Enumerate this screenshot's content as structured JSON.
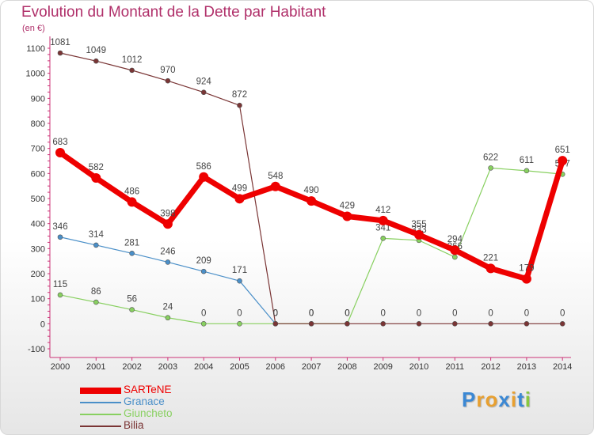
{
  "chart_data": {
    "type": "line",
    "title": "Evolution du Montant de la Dette par Habitant",
    "subtitle": "(en €)",
    "xlabel": "",
    "ylabel": "",
    "ylim": [
      -100,
      1100
    ],
    "yticks": [
      -100,
      0,
      100,
      200,
      300,
      400,
      500,
      600,
      700,
      800,
      900,
      1000,
      1100
    ],
    "x": [
      "2000",
      "2001",
      "2002",
      "2003",
      "2004",
      "2005",
      "2006",
      "2007",
      "2008",
      "2009",
      "2010",
      "2011",
      "2012",
      "2013",
      "2014"
    ],
    "grid": false,
    "legend_position": "bottom-left",
    "series": [
      {
        "name": "SARTeNE",
        "color": "#ee0000",
        "values": [
          683,
          582,
          486,
          398,
          586,
          499,
          548,
          490,
          429,
          412,
          355,
          294,
          221,
          179,
          651
        ]
      },
      {
        "name": "Granace",
        "color": "#4a8fc8",
        "values": [
          346,
          314,
          281,
          246,
          209,
          171,
          0,
          null,
          null,
          null,
          null,
          null,
          null,
          null,
          null
        ]
      },
      {
        "name": "Giuncheto",
        "color": "#88d060",
        "values": [
          115,
          86,
          56,
          24,
          0,
          0,
          0,
          0,
          0,
          341,
          333,
          266,
          622,
          611,
          597
        ]
      },
      {
        "name": "Bilia",
        "color": "#7a3535",
        "values": [
          1081,
          1049,
          1012,
          970,
          924,
          872,
          0,
          0,
          0,
          0,
          0,
          0,
          0,
          0,
          0
        ]
      }
    ]
  },
  "logo": {
    "text": "Proxiti",
    "colors": [
      "#3b88d4",
      "#e8a030",
      "#e8a030",
      "#3b88d4",
      "#e8a030",
      "#3b88d4",
      "#88c840"
    ]
  }
}
